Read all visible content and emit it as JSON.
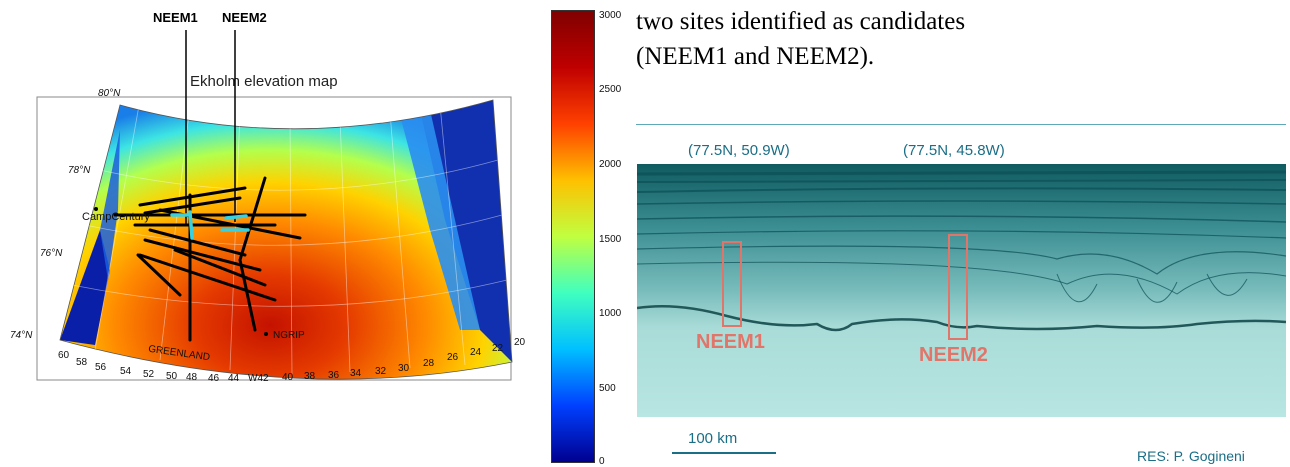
{
  "map": {
    "site_labels": [
      "NEEM1",
      "NEEM2"
    ],
    "title": "Ekholm elevation map",
    "latitudes": [
      "80°N",
      "78°N",
      "76°N",
      "74°N"
    ],
    "longitudes": [
      "60",
      "58",
      "56",
      "54",
      "52",
      "50",
      "48",
      "46",
      "44",
      "W42",
      "40",
      "38",
      "36",
      "34",
      "32",
      "30",
      "28",
      "26",
      "24",
      "22",
      "20"
    ],
    "place_camp": "CampCentury",
    "place_ngrip": "NGRIP",
    "place_greenland": "GREENLAND"
  },
  "colorbar": {
    "ticks": [
      "3000",
      "2500",
      "2000",
      "1500",
      "1000",
      "500",
      "0"
    ],
    "colors": [
      "#00008f",
      "#0040ff",
      "#00c0ff",
      "#40ffbf",
      "#c0ff40",
      "#ffc000",
      "#ff4000",
      "#bf0000",
      "#800000"
    ]
  },
  "caption": {
    "line1": "two sites identified as candidates",
    "line2": "(NEEM1 and NEEM2)."
  },
  "radar": {
    "coord1": "(77.5N, 50.9W)",
    "coord2": "(77.5N, 45.8W)",
    "site1": "NEEM1",
    "site2": "NEEM2",
    "scale": "100 km",
    "credit": "RES: P. Gogineni",
    "accent": "#1a6e86",
    "marker": "#e2756a"
  }
}
